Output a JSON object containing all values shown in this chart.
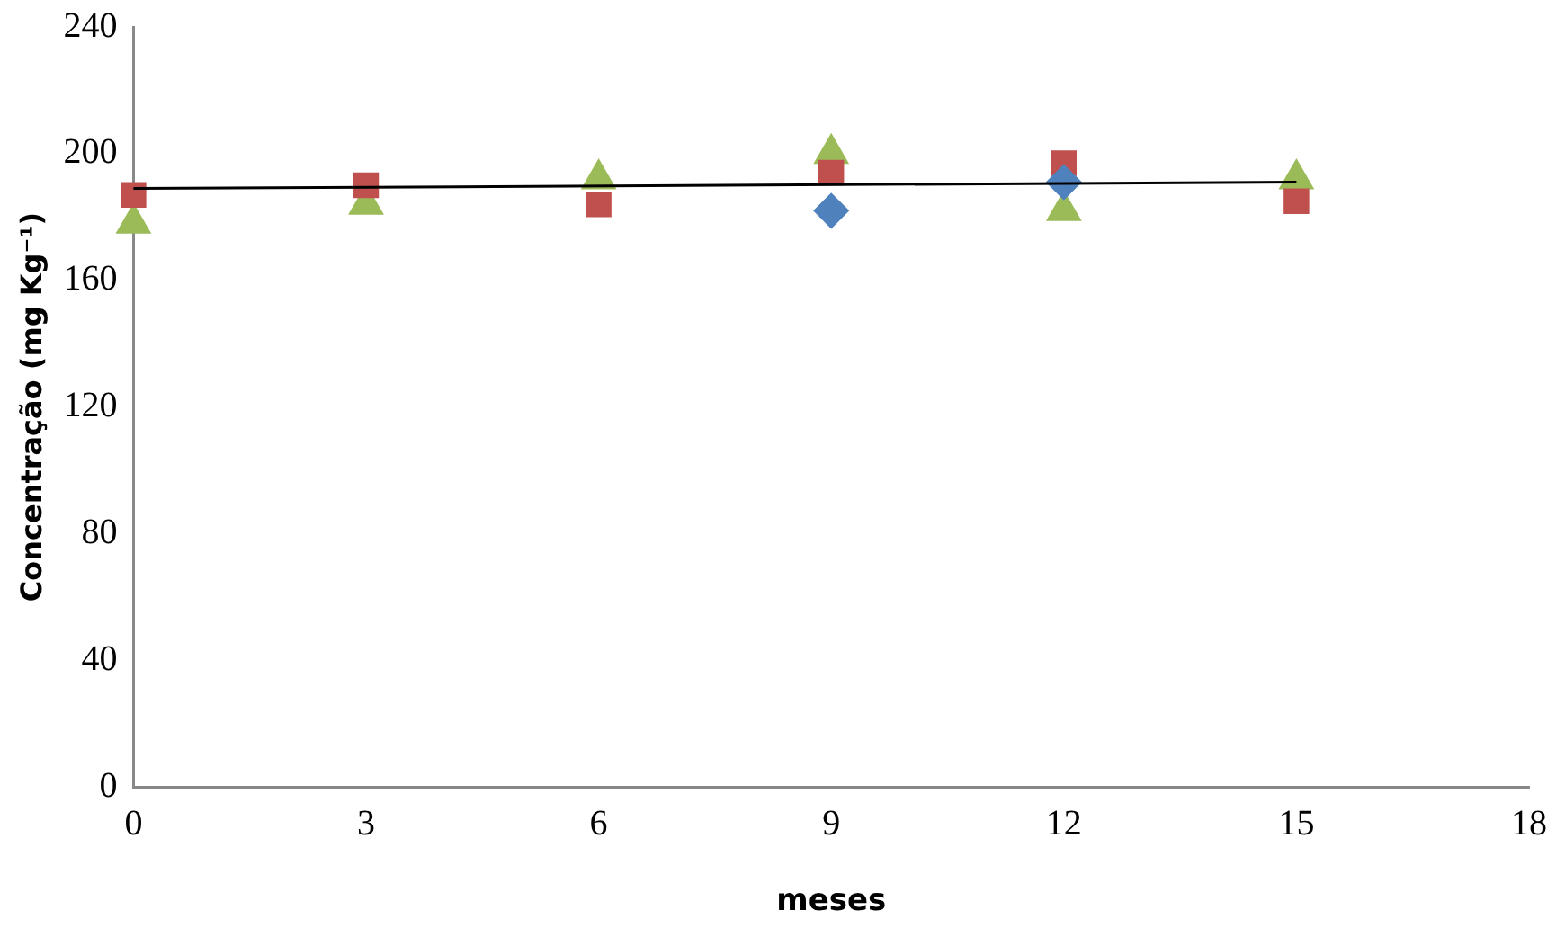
{
  "chart_data": {
    "type": "scatter",
    "xlabel": "meses",
    "ylabel": "Concentração (mg Kg⁻¹)",
    "x": [
      0,
      3,
      6,
      9,
      12,
      15
    ],
    "xlim": [
      0,
      18
    ],
    "xticks": [
      0,
      3,
      6,
      9,
      12,
      15,
      18
    ],
    "ylim": [
      0,
      240
    ],
    "yticks": [
      0,
      40,
      80,
      120,
      160,
      200,
      240
    ],
    "grid": false,
    "legend": false,
    "series": [
      {
        "color": "#4f81bd",
        "marker": "diamond",
        "values": [
          null,
          null,
          null,
          182,
          191,
          null
        ]
      },
      {
        "color": "#c0504d",
        "marker": "square",
        "values": [
          187,
          190,
          184,
          194,
          197,
          185
        ]
      },
      {
        "color": "#9bbb59",
        "marker": "triangle",
        "values": [
          178,
          184,
          192,
          200,
          182,
          192
        ]
      },
      {
        "type": "line",
        "color": "#000000",
        "marker": "none",
        "x": [
          0,
          15
        ],
        "values": [
          189,
          191
        ]
      }
    ]
  }
}
